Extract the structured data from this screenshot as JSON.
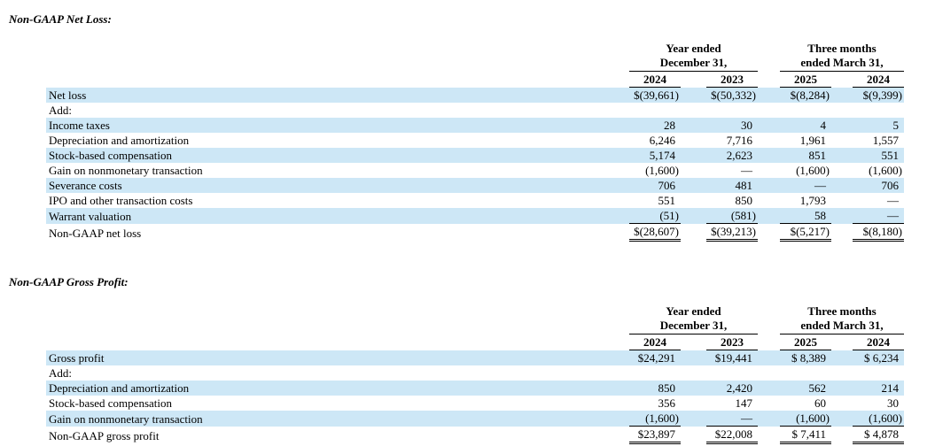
{
  "colors": {
    "row_shade": "#cde7f6"
  },
  "sections": [
    {
      "title": "Non-GAAP Net Loss:",
      "table": {
        "col_groups": [
          {
            "line1": "Year ended",
            "line2": "December 31,"
          },
          {
            "line1": "Three months",
            "line2": "ended March 31,"
          }
        ],
        "year_headers": [
          "2024",
          "2023",
          "2025",
          "2024"
        ],
        "rows": [
          {
            "label": "Net loss",
            "values": [
              "$(39,661)",
              "$(50,332)",
              "$(8,284)",
              "$(9,399)"
            ],
            "shaded": true
          },
          {
            "label": "Add:",
            "values": [
              "",
              "",
              "",
              ""
            ],
            "shaded": false
          },
          {
            "label": "Income taxes",
            "values": [
              "28",
              "30",
              "4",
              "5"
            ],
            "shaded": true
          },
          {
            "label": "Depreciation and amortization",
            "values": [
              "6,246",
              "7,716",
              "1,961",
              "1,557"
            ],
            "shaded": false
          },
          {
            "label": "Stock-based compensation",
            "values": [
              "5,174",
              "2,623",
              "851",
              "551"
            ],
            "shaded": true
          },
          {
            "label": "Gain on nonmonetary transaction",
            "values": [
              "(1,600)",
              "—",
              "(1,600)",
              "(1,600)"
            ],
            "shaded": false
          },
          {
            "label": "Severance costs",
            "values": [
              "706",
              "481",
              "—",
              "706"
            ],
            "shaded": true
          },
          {
            "label": "IPO and other transaction costs",
            "values": [
              "551",
              "850",
              "1,793",
              "—"
            ],
            "shaded": false
          },
          {
            "label": "Warrant valuation",
            "values": [
              "(51)",
              "(581)",
              "58",
              "—"
            ],
            "shaded": true,
            "rule": "single"
          },
          {
            "label": "Non-GAAP net loss",
            "values": [
              "$(28,607)",
              "$(39,213)",
              "$(5,217)",
              "$(8,180)"
            ],
            "shaded": false,
            "rule": "double"
          }
        ]
      }
    },
    {
      "title": "Non-GAAP Gross Profit:",
      "table": {
        "col_groups": [
          {
            "line1": "Year ended",
            "line2": "December 31,"
          },
          {
            "line1": "Three months",
            "line2": "ended March 31,"
          }
        ],
        "year_headers": [
          "2024",
          "2023",
          "2025",
          "2024"
        ],
        "rows": [
          {
            "label": "Gross profit",
            "values": [
              "$24,291",
              "$19,441",
              "$ 8,389",
              "$ 6,234"
            ],
            "shaded": true
          },
          {
            "label": "Add:",
            "values": [
              "",
              "",
              "",
              ""
            ],
            "shaded": false
          },
          {
            "label": "Depreciation and amortization",
            "values": [
              "850",
              "2,420",
              "562",
              "214"
            ],
            "shaded": true
          },
          {
            "label": "Stock-based compensation",
            "values": [
              "356",
              "147",
              "60",
              "30"
            ],
            "shaded": false
          },
          {
            "label": "Gain on nonmonetary transaction",
            "values": [
              "(1,600)",
              "—",
              "(1,600)",
              "(1,600)"
            ],
            "shaded": true,
            "rule": "single"
          },
          {
            "label": "Non-GAAP gross profit",
            "values": [
              "$23,897",
              "$22,008",
              "$ 7,411",
              "$ 4,878"
            ],
            "shaded": false,
            "rule": "double"
          }
        ]
      }
    }
  ]
}
